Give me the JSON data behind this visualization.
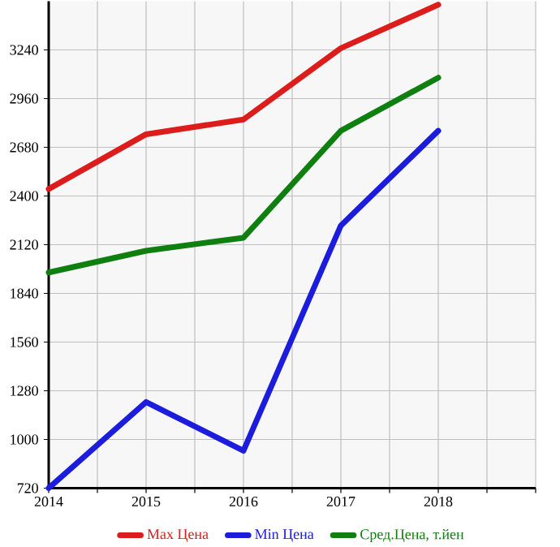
{
  "chart_data": {
    "type": "line",
    "x": [
      2014,
      2015,
      2016,
      2017,
      2018
    ],
    "series": [
      {
        "name": "Max Цена",
        "color": "#dd1c1c",
        "values": [
          2440,
          2755,
          2840,
          3250,
          3500
        ]
      },
      {
        "name": "Min Цена",
        "color": "#1c1cdd",
        "values": [
          720,
          1215,
          935,
          2230,
          2775
        ]
      },
      {
        "name": "Сред.Цена, т.йен",
        "color": "#0f7f0f",
        "values": [
          1960,
          2085,
          2160,
          2775,
          3080
        ]
      }
    ],
    "xlim": [
      2014,
      2019
    ],
    "xticks": [
      2014,
      {
        "value": 2014.5,
        "label": null
      },
      2015,
      {
        "value": 2015.5,
        "label": null
      },
      2016,
      {
        "value": 2016.5,
        "label": null
      },
      2017,
      {
        "value": 2017.5,
        "label": null
      },
      2018,
      {
        "value": 2018.5,
        "label": null
      },
      {
        "value": 2019,
        "label": null
      }
    ],
    "ylim": [
      720,
      3520
    ],
    "yticks": [
      720,
      1000,
      1280,
      1560,
      1840,
      2120,
      2400,
      2680,
      2960,
      3240
    ],
    "grid": true,
    "legend": "bottom",
    "marker": "none",
    "line_style": "solid"
  }
}
